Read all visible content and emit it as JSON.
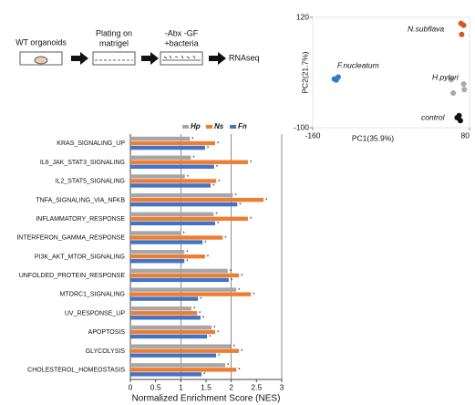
{
  "schematic": {
    "steps": [
      [
        "WT organoids"
      ],
      [
        "Plating on",
        "matrigel"
      ],
      [
        "-Abx -GF",
        "+bacteria"
      ],
      [
        "RNAseq"
      ]
    ]
  },
  "chart_data": [
    {
      "type": "scatter",
      "xlabel": "PC1(35.9%)",
      "ylabel": "PC2(21.7%)",
      "xlim": [
        -160,
        80
      ],
      "ylim": [
        -100,
        120
      ],
      "xticks": [
        -160,
        80
      ],
      "yticks": [
        -100,
        120
      ],
      "series": [
        {
          "name": "N.subflava",
          "color": "#d2581e",
          "x": [
            67,
            71,
            68
          ],
          "values": [
            108,
            104,
            86
          ]
        },
        {
          "name": "F.nucleatum",
          "color": "#2f7ec9",
          "x": [
            -127,
            -121,
            -124
          ],
          "values": [
            -3,
            1,
            -5
          ]
        },
        {
          "name": "H.pylori",
          "color": "#aaaaaa",
          "x": [
            52,
            71,
            72,
            55
          ],
          "values": [
            -4,
            -13,
            -24,
            -31
          ]
        },
        {
          "name": "control",
          "color": "#111111",
          "x": [
            61,
            66,
            64
          ],
          "values": [
            -80,
            -86,
            -76
          ]
        }
      ]
    },
    {
      "type": "bar",
      "orientation": "horizontal",
      "xlabel": "Normalized Enrichment Score (NES)",
      "significance_marker": "*",
      "xlim": [
        0,
        3
      ],
      "xticks": [
        0,
        0.5,
        1,
        1.5,
        2,
        2.5,
        3
      ],
      "grid": true,
      "categories": [
        "KRAS_SIGNALING_UP",
        "IL6_JAK_STAT3_SIGNALING",
        "IL2_STAT5_SIGNALING",
        "TNFA_SIGNALING_VIA_NFKB",
        "INFLAMMATORY_RESPONSE",
        "INTERFERON_GAMMA_RESPONSE",
        "PI3K_AKT_MTOR_SIGNALING",
        "UNFOLDED_PROTEIN_RESPONSE",
        "MTORC1_SIGNALING",
        "UV_RESPONSE_UP",
        "APOPTOSIS",
        "GLYCOLYSIS",
        "CHOLESTEROL_HOMEOSTASIS"
      ],
      "series": [
        {
          "name": "Hp",
          "color": "#a6a6a6",
          "values": [
            1.18,
            1.2,
            1.08,
            2.03,
            1.65,
            1.0,
            1.07,
            1.93,
            2.1,
            1.21,
            1.61,
            2.0,
            1.88
          ]
        },
        {
          "name": "Ns",
          "color": "#ed7d31",
          "values": [
            1.68,
            2.33,
            1.7,
            2.64,
            2.33,
            1.83,
            1.48,
            2.15,
            2.39,
            1.32,
            1.68,
            2.15,
            2.1
          ]
        },
        {
          "name": "Fn",
          "color": "#4472c4",
          "values": [
            1.48,
            1.66,
            1.59,
            2.12,
            1.68,
            1.43,
            1.07,
            1.95,
            1.34,
            1.39,
            1.52,
            1.7,
            1.41
          ]
        }
      ]
    }
  ]
}
